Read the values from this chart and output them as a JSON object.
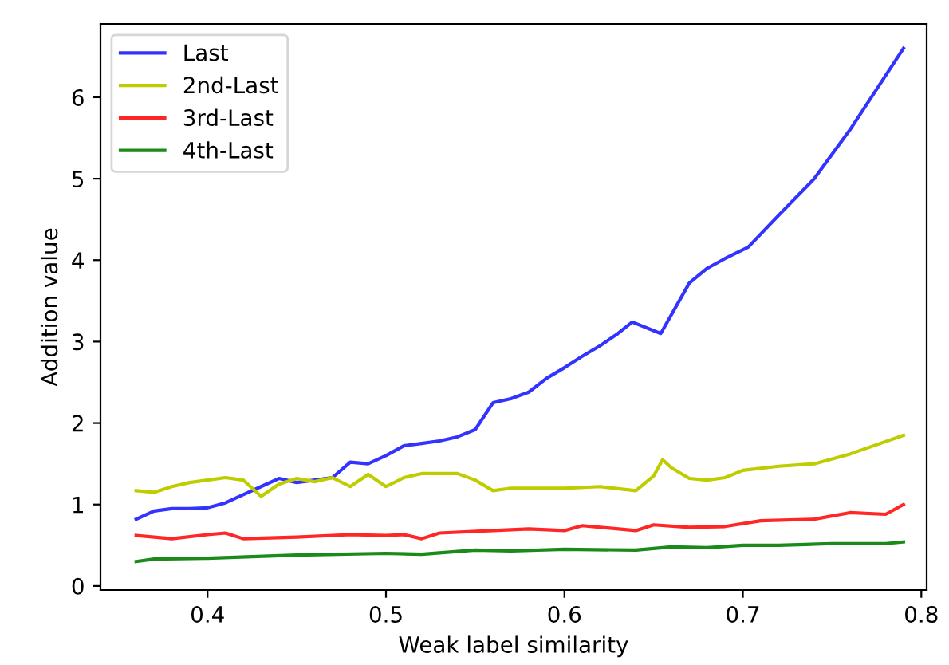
{
  "chart_data": {
    "type": "line",
    "xlabel": "Weak label similarity",
    "ylabel": "Addition value",
    "xlim": [
      0.34,
      0.803
    ],
    "ylim": [
      -0.05,
      6.9
    ],
    "xticks": [
      0.4,
      0.5,
      0.6,
      0.7,
      0.8
    ],
    "yticks": [
      0,
      1,
      2,
      3,
      4,
      5,
      6
    ],
    "legend": "top left",
    "grid": false,
    "line_style": "solid",
    "marker": "none",
    "series": [
      {
        "name": "Last",
        "color": "#3333ff",
        "x": [
          0.36,
          0.37,
          0.38,
          0.39,
          0.4,
          0.41,
          0.42,
          0.43,
          0.44,
          0.45,
          0.46,
          0.47,
          0.48,
          0.49,
          0.5,
          0.51,
          0.52,
          0.53,
          0.54,
          0.55,
          0.56,
          0.57,
          0.58,
          0.59,
          0.6,
          0.61,
          0.62,
          0.63,
          0.638,
          0.654,
          0.67,
          0.68,
          0.69,
          0.703,
          0.72,
          0.74,
          0.76,
          0.79
        ],
        "values": [
          0.82,
          0.92,
          0.95,
          0.95,
          0.96,
          1.02,
          1.12,
          1.22,
          1.32,
          1.27,
          1.3,
          1.33,
          1.52,
          1.5,
          1.6,
          1.72,
          1.75,
          1.78,
          1.83,
          1.92,
          2.25,
          2.3,
          2.38,
          2.55,
          2.68,
          2.82,
          2.95,
          3.1,
          3.24,
          3.1,
          3.72,
          3.9,
          4.02,
          4.16,
          4.55,
          5.0,
          5.6,
          6.6
        ]
      },
      {
        "name": "2nd-Last",
        "color": "#bfcc00",
        "x": [
          0.36,
          0.37,
          0.38,
          0.39,
          0.4,
          0.41,
          0.42,
          0.43,
          0.44,
          0.45,
          0.46,
          0.47,
          0.48,
          0.49,
          0.5,
          0.51,
          0.52,
          0.53,
          0.54,
          0.55,
          0.56,
          0.57,
          0.58,
          0.6,
          0.62,
          0.64,
          0.65,
          0.655,
          0.66,
          0.67,
          0.68,
          0.69,
          0.7,
          0.72,
          0.74,
          0.76,
          0.79
        ],
        "values": [
          1.17,
          1.15,
          1.22,
          1.27,
          1.3,
          1.33,
          1.3,
          1.1,
          1.25,
          1.32,
          1.28,
          1.33,
          1.22,
          1.37,
          1.22,
          1.33,
          1.38,
          1.38,
          1.38,
          1.3,
          1.17,
          1.2,
          1.2,
          1.2,
          1.22,
          1.17,
          1.35,
          1.55,
          1.45,
          1.32,
          1.3,
          1.33,
          1.42,
          1.47,
          1.5,
          1.62,
          1.85
        ]
      },
      {
        "name": "3rd-Last",
        "color": "#ff2626",
        "x": [
          0.36,
          0.38,
          0.4,
          0.41,
          0.42,
          0.45,
          0.48,
          0.5,
          0.51,
          0.52,
          0.53,
          0.56,
          0.58,
          0.6,
          0.61,
          0.64,
          0.65,
          0.67,
          0.69,
          0.71,
          0.74,
          0.76,
          0.78,
          0.79
        ],
        "values": [
          0.62,
          0.58,
          0.63,
          0.65,
          0.58,
          0.6,
          0.63,
          0.62,
          0.63,
          0.58,
          0.65,
          0.68,
          0.7,
          0.68,
          0.74,
          0.68,
          0.75,
          0.72,
          0.73,
          0.8,
          0.82,
          0.9,
          0.88,
          1.0
        ]
      },
      {
        "name": "4th-Last",
        "color": "#1a8a1a",
        "x": [
          0.36,
          0.37,
          0.4,
          0.45,
          0.5,
          0.52,
          0.55,
          0.57,
          0.6,
          0.64,
          0.66,
          0.68,
          0.7,
          0.72,
          0.75,
          0.78,
          0.79
        ],
        "values": [
          0.3,
          0.33,
          0.34,
          0.38,
          0.4,
          0.39,
          0.44,
          0.43,
          0.45,
          0.44,
          0.48,
          0.47,
          0.5,
          0.5,
          0.52,
          0.52,
          0.54
        ]
      }
    ]
  }
}
